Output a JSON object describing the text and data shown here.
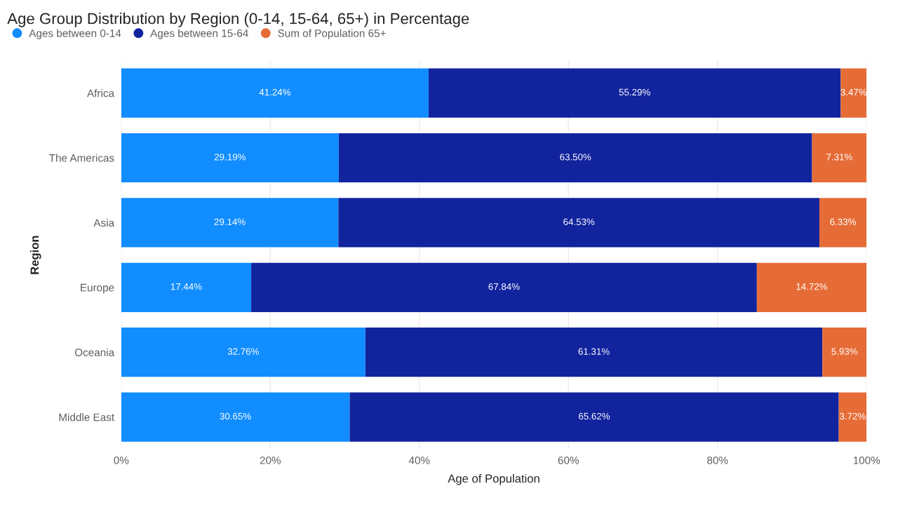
{
  "chart_data": {
    "type": "bar",
    "orientation": "horizontal",
    "stacked": true,
    "title": "Age Group Distribution by Region (0-14, 15-64, 65+) in Percentage",
    "xlabel": "Age of Population",
    "ylabel": "Region",
    "categories": [
      "Africa",
      "The Americas",
      "Asia",
      "Europe",
      "Oceania",
      "Middle East"
    ],
    "series": [
      {
        "name": "Ages between 0-14",
        "color": "#118dff",
        "values": [
          41.24,
          29.19,
          29.14,
          17.44,
          32.76,
          30.65
        ],
        "value_labels": [
          "41.24%",
          "29.19%",
          "29.14%",
          "17.44%",
          "32.76%",
          "30.65%"
        ]
      },
      {
        "name": "Ages between 15-64",
        "color": "#12239e",
        "values": [
          55.29,
          63.5,
          64.53,
          67.84,
          61.31,
          65.62
        ],
        "value_labels": [
          "55.29%",
          "63.50%",
          "64.53%",
          "67.84%",
          "61.31%",
          "65.62%"
        ]
      },
      {
        "name": "Sum of Population 65+",
        "color": "#e66c37",
        "values": [
          3.47,
          7.31,
          6.33,
          14.72,
          5.93,
          3.72
        ],
        "value_labels": [
          "3.47%",
          "7.31%",
          "6.33%",
          "14.72%",
          "5.93%",
          "3.72%"
        ]
      }
    ],
    "xlim": [
      0,
      100
    ],
    "xticks": [
      {
        "value": 0,
        "label": "0%"
      },
      {
        "value": 20,
        "label": "20%"
      },
      {
        "value": 40,
        "label": "40%"
      },
      {
        "value": 60,
        "label": "60%"
      },
      {
        "value": 80,
        "label": "80%"
      },
      {
        "value": 100,
        "label": "100%"
      }
    ],
    "grid": "x",
    "legend": "top left"
  }
}
